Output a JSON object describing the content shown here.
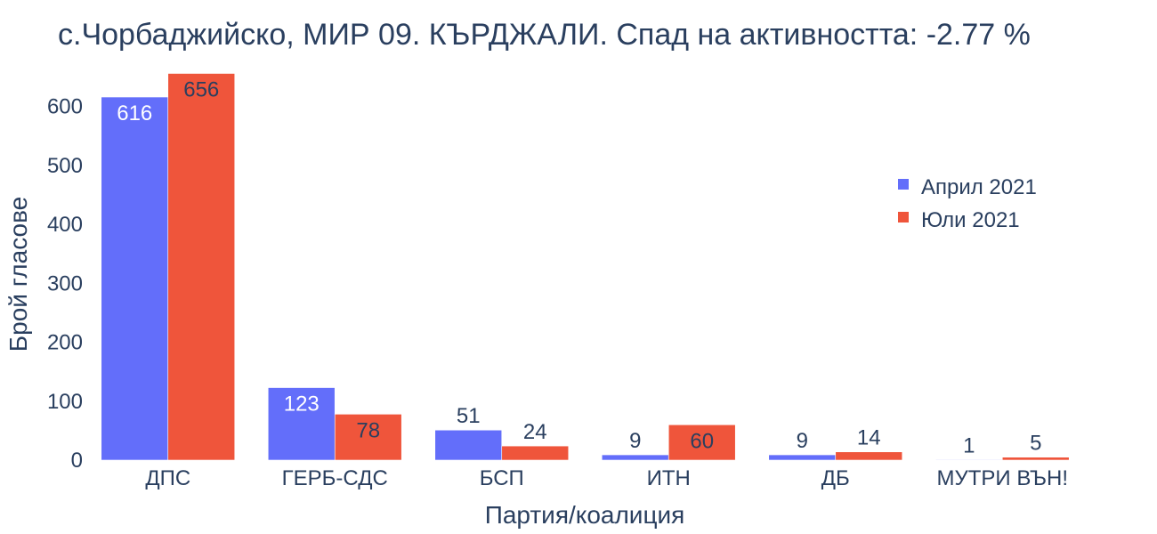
{
  "chart_data": {
    "type": "bar",
    "title": "с.Чорбаджийско, МИР 09. КЪРДЖАЛИ. Спад на активността: -2.77 %",
    "xlabel": "Партия/коалиция",
    "ylabel": "Брой гласове",
    "categories": [
      "ДПС",
      "ГЕРБ-СДС",
      "БСП",
      "ИТН",
      "ДБ",
      "МУТРИ ВЪН!"
    ],
    "series": [
      {
        "name": "Април 2021",
        "values": [
          616,
          123,
          51,
          9,
          9,
          1
        ],
        "color": "#636efa"
      },
      {
        "name": "Юли 2021",
        "values": [
          656,
          78,
          24,
          60,
          14,
          5
        ],
        "color": "#ef553b"
      }
    ],
    "ylim": [
      0,
      690
    ],
    "yticks": [
      0,
      100,
      200,
      300,
      400,
      500,
      600
    ],
    "grid": false,
    "legend": "right"
  }
}
